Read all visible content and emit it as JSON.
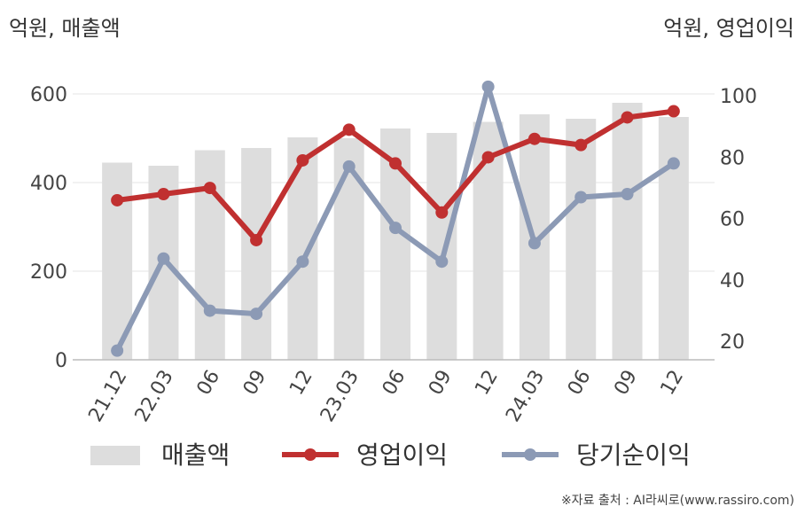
{
  "header": {
    "left_unit": "억원, 매출액",
    "right_unit": "억원, 영업이익"
  },
  "source": "※자료 출처 : AI라씨로(www.rassiro.com)",
  "chart_data": {
    "type": "bar",
    "categories": [
      "21.12",
      "22.03",
      "06",
      "09",
      "12",
      "23.03",
      "06",
      "09",
      "12",
      "24.03",
      "06",
      "09",
      "12"
    ],
    "series": [
      {
        "name": "매출액",
        "type": "bar",
        "axis": "left",
        "color": "#dddddd",
        "values": [
          445,
          438,
          473,
          478,
          502,
          500,
          522,
          512,
          537,
          554,
          544,
          580,
          548
        ]
      },
      {
        "name": "영업이익",
        "type": "line",
        "axis": "right",
        "color": "#c03030",
        "values": [
          66,
          68,
          70,
          53,
          79,
          89,
          78,
          62,
          80,
          86,
          84,
          93,
          95
        ]
      },
      {
        "name": "당기순이익",
        "type": "line",
        "axis": "right",
        "color": "#8c9ab5",
        "values": [
          17,
          47,
          30,
          29,
          46,
          77,
          57,
          46,
          103,
          52,
          67,
          68,
          78
        ]
      }
    ],
    "y_left": {
      "min": 0,
      "max": 600,
      "ticks": [
        0,
        200,
        400,
        600
      ]
    },
    "y_right": {
      "min": 14,
      "max": 107,
      "ticks": [
        20,
        40,
        60,
        80,
        100
      ]
    },
    "grid": true,
    "legend": "bottom"
  }
}
